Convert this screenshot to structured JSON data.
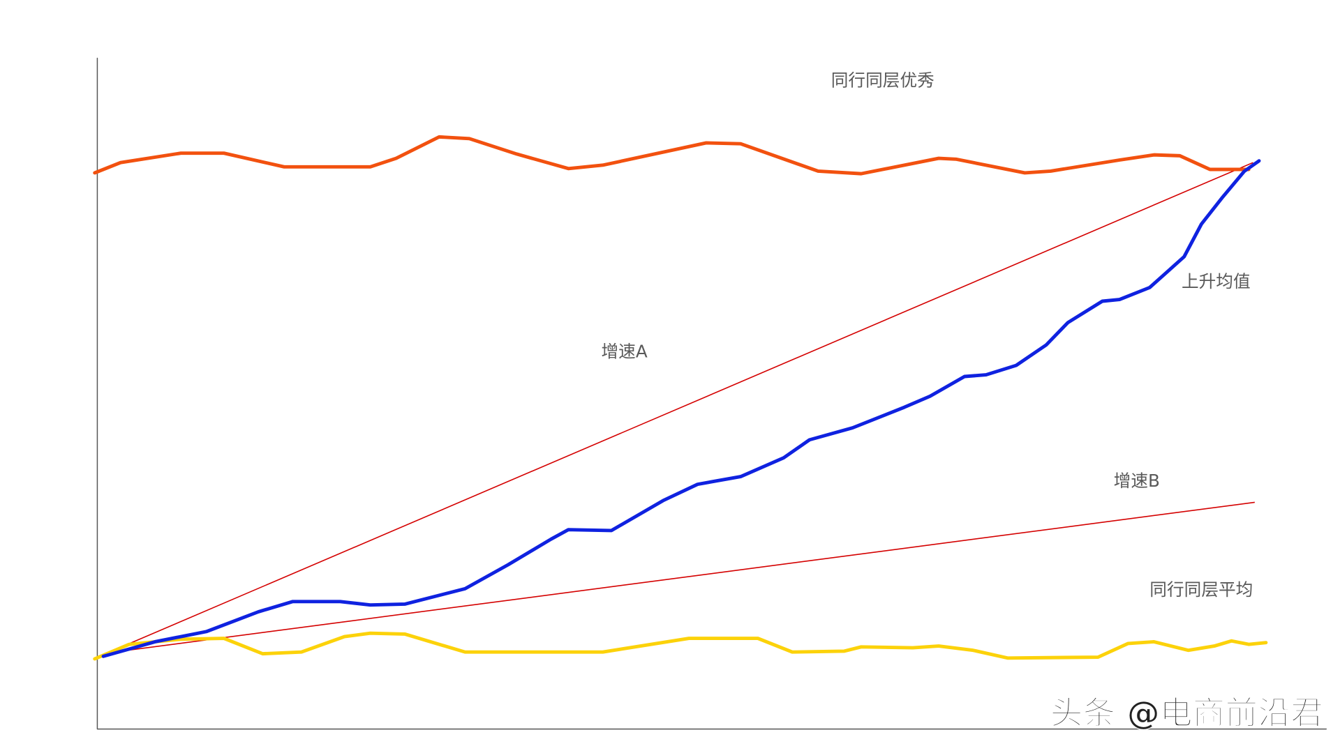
{
  "labels": {
    "top": "同行同层优秀",
    "rise_mean": "上升均值",
    "speed_a": "增速A",
    "speed_b": "增速B",
    "average": "同行同层平均"
  },
  "watermark": "头条 @电商前沿君"
}
